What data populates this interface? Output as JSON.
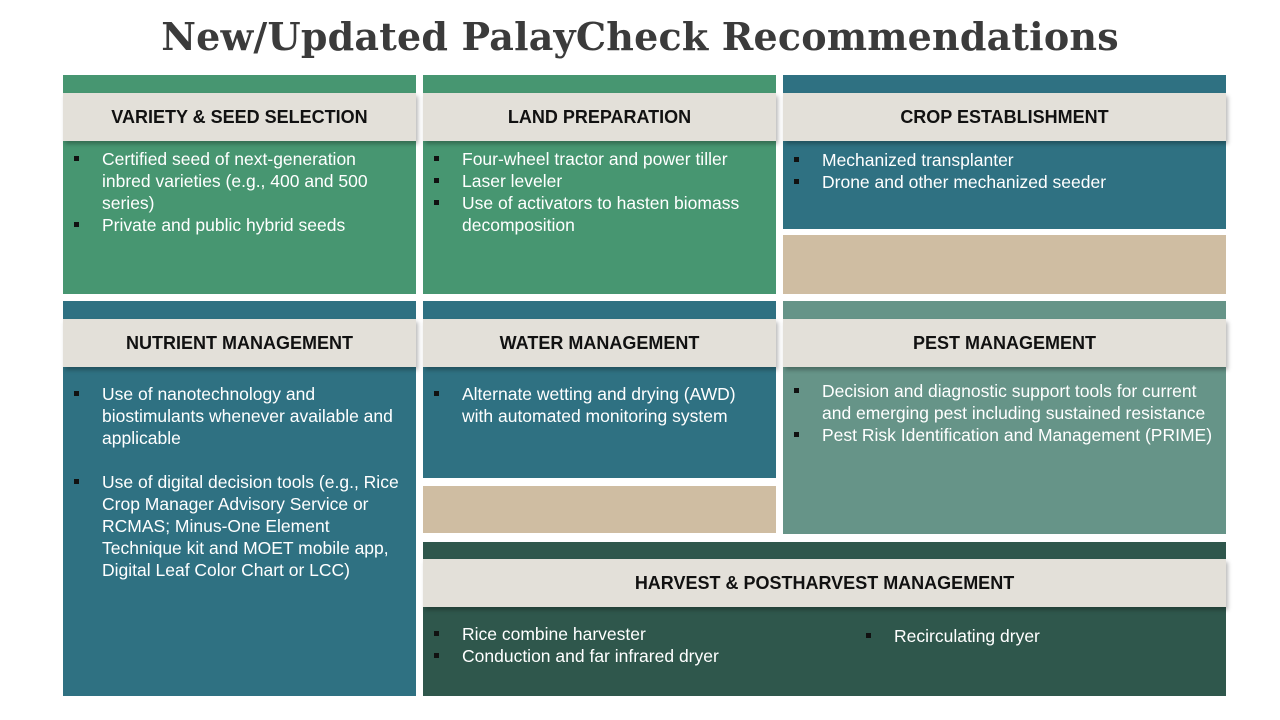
{
  "title": "New/Updated PalayCheck Recommendations",
  "colors": {
    "green": "#479671",
    "teal": "#2f7182",
    "sage": "#669488",
    "dark_green": "#2f574c",
    "header_bg": "#e3e0d9",
    "tan": "#cfbda2"
  },
  "panels": {
    "variety": {
      "heading": "VARIETY & SEED SELECTION",
      "items": [
        "Certified seed of next-generation inbred varieties (e.g., 400 and 500 series)",
        "Private and public hybrid seeds"
      ]
    },
    "land": {
      "heading": "LAND PREPARATION",
      "items": [
        "Four-wheel tractor and power tiller",
        "Laser leveler",
        "Use of activators to hasten biomass decomposition"
      ]
    },
    "crop": {
      "heading": "CROP ESTABLISHMENT",
      "items": [
        "Mechanized transplanter",
        "Drone and other mechanized seeder"
      ]
    },
    "nutrient": {
      "heading": "NUTRIENT MANAGEMENT",
      "items": [
        "Use of nanotechnology and biostimulants whenever available and applicable",
        "Use of digital decision tools (e.g., Rice Crop Manager Advisory Service or RCMAS; Minus-One Element Technique kit and MOET mobile app, Digital Leaf Color Chart or LCC)"
      ]
    },
    "water": {
      "heading": "WATER MANAGEMENT",
      "items": [
        "Alternate wetting and drying (AWD) with automated monitoring system"
      ]
    },
    "pest": {
      "heading": "PEST MANAGEMENT",
      "items": [
        "Decision and diagnostic support tools for current and emerging pest including sustained resistance",
        "Pest Risk Identification and Management (PRIME)"
      ]
    },
    "harvest": {
      "heading": "HARVEST & POSTHARVEST MANAGEMENT",
      "items_left": [
        "Rice combine harvester",
        "Conduction and far infrared dryer"
      ],
      "items_right": [
        "Recirculating dryer"
      ]
    }
  }
}
